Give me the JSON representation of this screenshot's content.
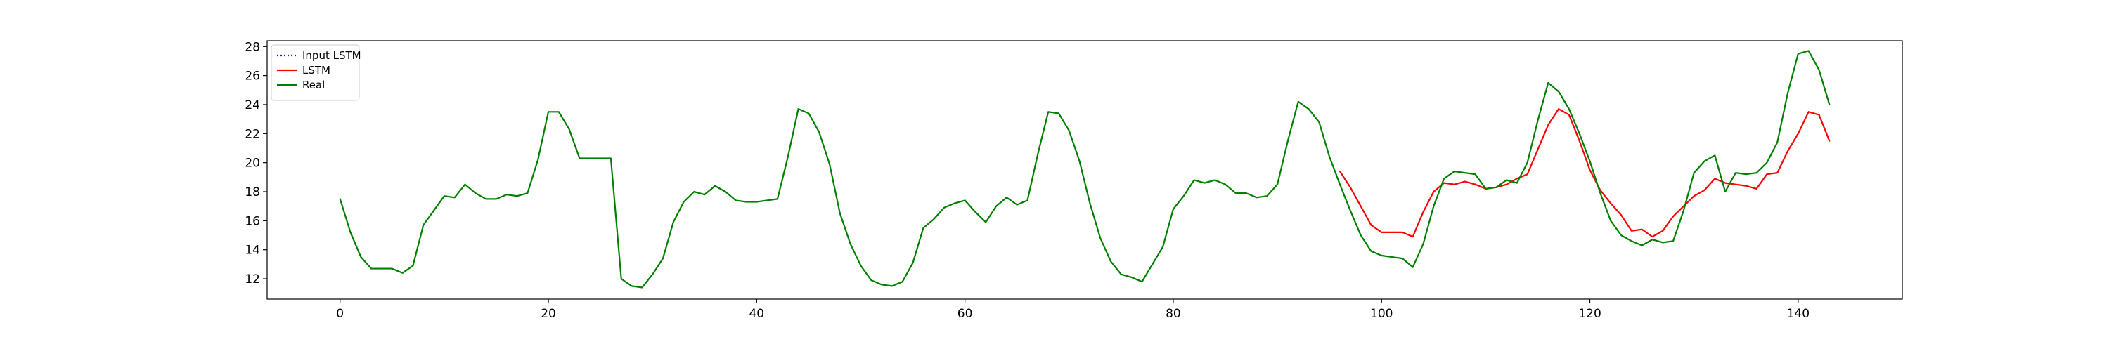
{
  "chart_data": {
    "type": "line",
    "title": "",
    "xlabel": "",
    "ylabel": "",
    "xlim": [
      -7,
      150
    ],
    "ylim": [
      10.6,
      28.4
    ],
    "xticks": [
      0,
      20,
      40,
      60,
      80,
      100,
      120,
      140
    ],
    "yticks": [
      12,
      14,
      16,
      18,
      20,
      22,
      24,
      26,
      28
    ],
    "grid": false,
    "legend_position": "top-left",
    "series": [
      {
        "name": "Input LSTM",
        "color": "#1f1f8f",
        "linestyle": "dotted",
        "x": [],
        "y": []
      },
      {
        "name": "LSTM",
        "color": "#ff0000",
        "linestyle": "solid",
        "x": [
          96,
          97,
          98,
          99,
          100,
          101,
          102,
          103,
          104,
          105,
          106,
          107,
          108,
          109,
          110,
          111,
          112,
          113,
          114,
          115,
          116,
          117,
          118,
          119,
          120,
          121,
          122,
          123,
          124,
          125,
          126,
          127,
          128,
          129,
          130,
          131,
          132,
          133,
          134,
          135,
          136,
          137,
          138,
          139,
          140,
          141,
          142,
          143
        ],
        "y": [
          19.4,
          18.3,
          17.0,
          15.7,
          15.2,
          15.2,
          15.2,
          14.9,
          16.6,
          18.0,
          18.6,
          18.5,
          18.7,
          18.5,
          18.2,
          18.3,
          18.5,
          18.9,
          19.2,
          20.9,
          22.6,
          23.7,
          23.3,
          21.5,
          19.5,
          18.1,
          17.2,
          16.4,
          15.3,
          15.4,
          14.9,
          15.3,
          16.3,
          17.0,
          17.7,
          18.1,
          18.9,
          18.6,
          18.5,
          18.4,
          18.2,
          19.2,
          19.3,
          20.8,
          22.0,
          23.5,
          23.3,
          21.5
        ]
      },
      {
        "name": "Real",
        "color": "#008000",
        "linestyle": "solid",
        "x": [
          0,
          1,
          2,
          3,
          4,
          5,
          6,
          7,
          8,
          9,
          10,
          11,
          12,
          13,
          14,
          15,
          16,
          17,
          18,
          19,
          20,
          21,
          22,
          23,
          24,
          25,
          26,
          27,
          28,
          29,
          30,
          31,
          32,
          33,
          34,
          35,
          36,
          37,
          38,
          39,
          40,
          41,
          42,
          43,
          44,
          45,
          46,
          47,
          48,
          49,
          50,
          51,
          52,
          53,
          54,
          55,
          56,
          57,
          58,
          59,
          60,
          61,
          62,
          63,
          64,
          65,
          66,
          67,
          68,
          69,
          70,
          71,
          72,
          73,
          74,
          75,
          76,
          77,
          78,
          79,
          80,
          81,
          82,
          83,
          84,
          85,
          86,
          87,
          88,
          89,
          90,
          91,
          92,
          93,
          94,
          95,
          96,
          97,
          98,
          99,
          100,
          101,
          102,
          103,
          104,
          105,
          106,
          107,
          108,
          109,
          110,
          111,
          112,
          113,
          114,
          115,
          116,
          117,
          118,
          119,
          120,
          121,
          122,
          123,
          124,
          125,
          126,
          127,
          128,
          129,
          130,
          131,
          132,
          133,
          134,
          135,
          136,
          137,
          138,
          139,
          140,
          141,
          142,
          143
        ],
        "y": [
          17.5,
          15.2,
          13.5,
          12.7,
          12.7,
          12.7,
          12.4,
          12.9,
          15.7,
          16.7,
          17.7,
          17.6,
          18.5,
          17.9,
          17.5,
          17.5,
          17.8,
          17.7,
          17.9,
          20.2,
          23.5,
          23.5,
          22.3,
          20.3,
          20.3,
          20.3,
          20.3,
          12.0,
          11.5,
          11.4,
          12.3,
          13.4,
          15.9,
          17.3,
          18.0,
          17.8,
          18.4,
          18.0,
          17.4,
          17.3,
          17.3,
          17.4,
          17.5,
          20.4,
          23.7,
          23.4,
          22.1,
          19.9,
          16.5,
          14.4,
          12.9,
          11.9,
          11.6,
          11.5,
          11.8,
          13.1,
          15.5,
          16.1,
          16.9,
          17.2,
          17.4,
          16.6,
          15.9,
          17.0,
          17.6,
          17.1,
          17.4,
          20.6,
          23.5,
          23.4,
          22.2,
          20.1,
          17.2,
          14.8,
          13.2,
          12.3,
          12.1,
          11.8,
          13.0,
          14.2,
          16.8,
          17.7,
          18.8,
          18.6,
          18.8,
          18.5,
          17.9,
          17.9,
          17.6,
          17.7,
          18.5,
          21.5,
          24.2,
          23.7,
          22.8,
          20.4,
          18.5,
          16.7,
          15.0,
          13.9,
          13.6,
          13.5,
          13.4,
          12.8,
          14.4,
          17.0,
          18.9,
          19.4,
          19.3,
          19.2,
          18.2,
          18.3,
          18.8,
          18.6,
          20.0,
          22.9,
          25.5,
          24.9,
          23.7,
          22.0,
          20.1,
          17.9,
          16.0,
          15.0,
          14.6,
          14.3,
          14.7,
          14.5,
          14.6,
          16.7,
          19.3,
          20.1,
          20.5,
          18.0,
          19.3,
          19.2,
          19.3,
          20.0,
          21.4,
          24.8,
          27.5,
          27.7,
          26.4,
          24.0
        ]
      }
    ],
    "legend_entries": [
      "Input LSTM",
      "LSTM",
      "Real"
    ]
  }
}
